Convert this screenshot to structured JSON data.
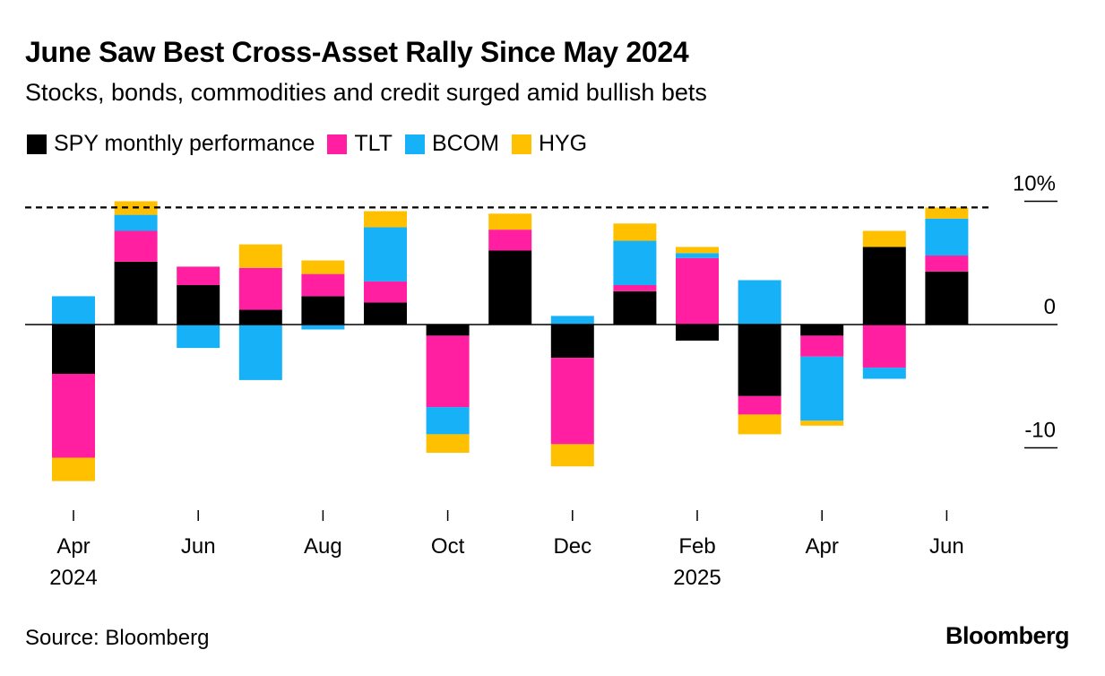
{
  "title": "June Saw Best Cross-Asset Rally Since May 2024",
  "subtitle": "Stocks, bonds, commodities and credit surged amid bullish bets",
  "source": "Source: Bloomberg",
  "brand": "Bloomberg",
  "chart_data": {
    "type": "bar",
    "stacked": true,
    "title": "June Saw Best Cross-Asset Rally Since May 2024",
    "xlabel": "",
    "ylabel": "",
    "ylim": [
      -16,
      12
    ],
    "y_ticks": [
      10,
      0,
      -10
    ],
    "y_tick_labels": [
      "10%",
      "0",
      "-10"
    ],
    "reference_line": 9.5,
    "categories": [
      "Apr 2024",
      "May 2024",
      "Jun 2024",
      "Jul 2024",
      "Aug 2024",
      "Sep 2024",
      "Oct 2024",
      "Nov 2024",
      "Dec 2024",
      "Jan 2025",
      "Feb 2025",
      "Mar 2025",
      "Apr 2025",
      "May 2025",
      "Jun 2025"
    ],
    "x_tick_labels": [
      {
        "index": 0,
        "line1": "Apr",
        "line2": "2024"
      },
      {
        "index": 2,
        "line1": "Jun",
        "line2": ""
      },
      {
        "index": 4,
        "line1": "Aug",
        "line2": ""
      },
      {
        "index": 6,
        "line1": "Oct",
        "line2": ""
      },
      {
        "index": 8,
        "line1": "Dec",
        "line2": ""
      },
      {
        "index": 10,
        "line1": "Feb",
        "line2": "2025"
      },
      {
        "index": 12,
        "line1": "Apr",
        "line2": ""
      },
      {
        "index": 14,
        "line1": "Jun",
        "line2": ""
      }
    ],
    "series": [
      {
        "name": "SPY monthly performance",
        "color": "#000000",
        "values": [
          -4.0,
          5.1,
          3.2,
          1.2,
          2.3,
          1.8,
          -0.9,
          6.0,
          -2.7,
          2.7,
          -1.3,
          -5.8,
          -0.9,
          6.3,
          4.3
        ]
      },
      {
        "name": "TLT",
        "color": "#ff1fa0",
        "values": [
          -6.8,
          2.5,
          1.5,
          3.4,
          1.8,
          1.7,
          -5.8,
          1.7,
          -7.0,
          0.5,
          5.4,
          -1.5,
          -1.7,
          -3.5,
          1.3
        ]
      },
      {
        "name": "BCOM",
        "color": "#16b1f7",
        "values": [
          2.3,
          1.3,
          -1.9,
          -4.5,
          -0.4,
          4.4,
          -2.2,
          0,
          0.7,
          3.6,
          0.4,
          3.6,
          -5.2,
          -0.9,
          3.0
        ]
      },
      {
        "name": "HYG",
        "color": "#ffc000",
        "values": [
          -1.9,
          1.1,
          0,
          1.9,
          1.1,
          1.3,
          -1.5,
          1.3,
          -1.8,
          1.4,
          0.5,
          -1.6,
          -0.4,
          1.3,
          0.9
        ]
      }
    ],
    "legend_position": "top-left",
    "grid": false
  }
}
